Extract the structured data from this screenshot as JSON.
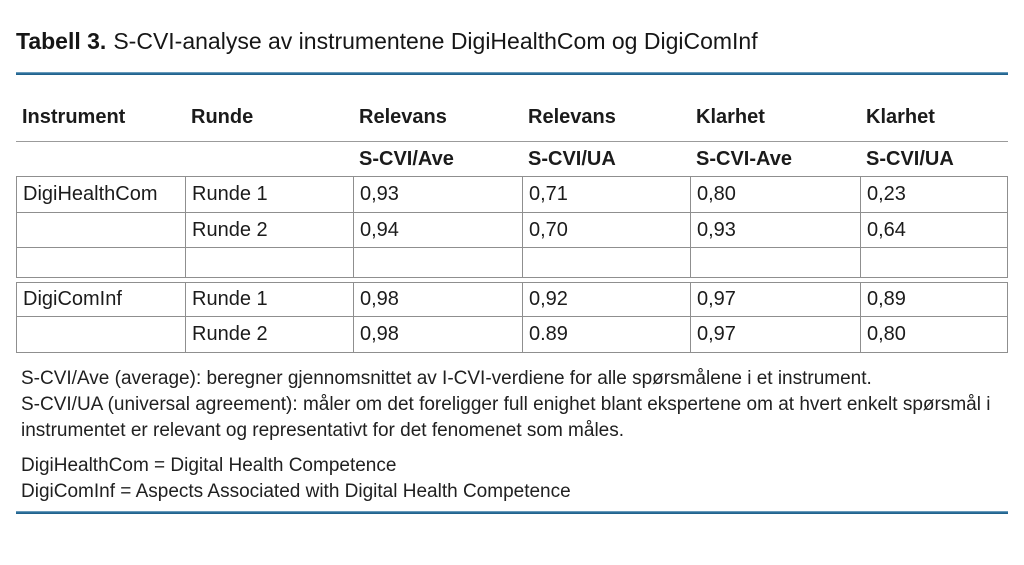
{
  "page": {
    "title_label": "Tabell 3.",
    "title_text": "S-CVI-analyse av instrumentene DigiHealthCom og DigiComInf"
  },
  "table": {
    "header_row_1": [
      "Instrument",
      "Runde",
      "Relevans",
      "Relevans",
      "Klarhet",
      "Klarhet"
    ],
    "header_row_2": [
      "",
      "",
      "S-CVI/Ave",
      "S-CVI/UA",
      "S-CVI-Ave",
      "S-CVI/UA"
    ],
    "rows": [
      [
        "DigiHealthCom",
        "Runde 1",
        "0,93",
        "0,71",
        "0,80",
        "0,23"
      ],
      [
        "",
        "Runde 2",
        "0,94",
        "0,70",
        "0,93",
        "0,64"
      ],
      [
        "",
        "",
        "",
        "",
        "",
        ""
      ],
      [
        "DigiComInf",
        "Runde 1",
        "0,98",
        "0,92",
        "0,97",
        "0,89"
      ],
      [
        "",
        "Runde 2",
        "0,98",
        "0.89",
        "0,97",
        "0,80"
      ]
    ]
  },
  "notes": {
    "ave": "S-CVI/Ave (average): beregner gjennomsnittet av I-CVI-verdiene for alle spørsmålene i et instrument.",
    "ua": "S-CVI/UA (universal agreement): måler om det foreligger full enighet blant ekspertene om at hvert enkelt spørsmål i instrumentet er relevant og representativt for det fenomenet som måles.",
    "def_digihealthcom": "DigiHealthCom = Digital Health Competence",
    "def_digicominf": "DigiComInf = Aspects Associated with Digital Health Competence"
  },
  "colors": {
    "accent_blue": "#2a6f9c",
    "border_gray": "#8f8f8f",
    "text": "#1b1b1b"
  }
}
